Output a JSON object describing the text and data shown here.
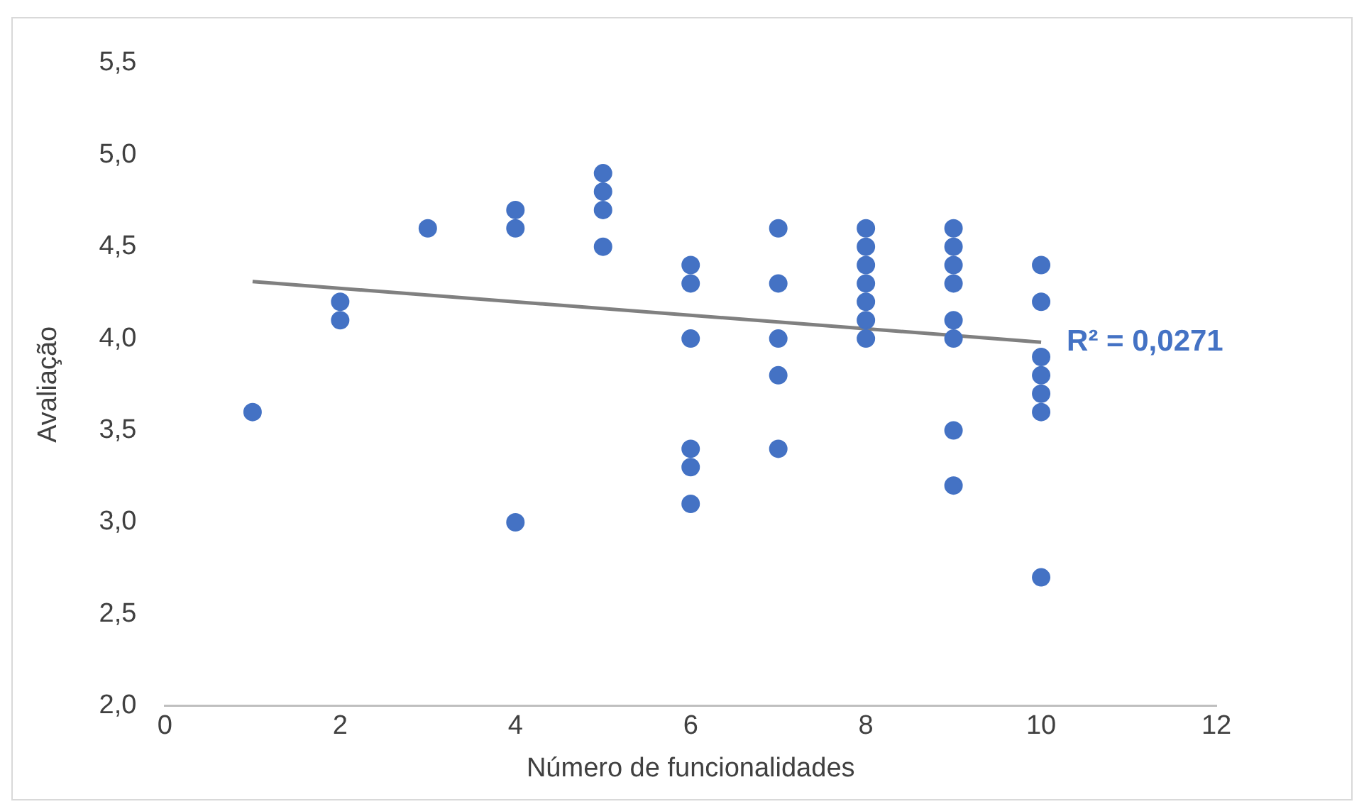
{
  "chart_data": {
    "type": "scatter",
    "xlabel": "Número de funcionalidades",
    "ylabel": "Avaliação",
    "xlim": [
      0,
      12
    ],
    "xticks": [
      0,
      2,
      4,
      6,
      8,
      10,
      12
    ],
    "ylim": [
      2.0,
      5.5
    ],
    "yticks": [
      {
        "value": 2.0,
        "label": "2,0"
      },
      {
        "value": 2.5,
        "label": "2,5"
      },
      {
        "value": 3.0,
        "label": "3,0"
      },
      {
        "value": 3.5,
        "label": "3,5"
      },
      {
        "value": 4.0,
        "label": "4,0"
      },
      {
        "value": 4.5,
        "label": "4,5"
      },
      {
        "value": 5.0,
        "label": "5,0"
      },
      {
        "value": 5.5,
        "label": "5,5"
      }
    ],
    "grid": false,
    "legend": false,
    "marker": "circle",
    "series": [
      {
        "color": "#4472c4",
        "x": [
          1,
          2,
          2,
          3,
          4,
          4,
          4,
          5,
          5,
          5,
          5,
          6,
          6,
          6,
          6,
          6,
          6,
          7,
          7,
          7,
          7,
          7,
          8,
          8,
          8,
          8,
          8,
          8,
          8,
          9,
          9,
          9,
          9,
          9,
          9,
          9,
          9,
          10,
          10,
          10,
          10,
          10,
          10,
          10
        ],
        "values": [
          3.6,
          4.2,
          4.1,
          4.6,
          4.7,
          4.6,
          3.0,
          4.9,
          4.8,
          4.7,
          4.5,
          4.4,
          4.3,
          4.0,
          3.4,
          3.3,
          3.1,
          4.6,
          4.3,
          4.0,
          3.8,
          3.4,
          4.6,
          4.5,
          4.4,
          4.3,
          4.2,
          4.1,
          4.0,
          4.6,
          4.5,
          4.4,
          4.3,
          4.1,
          4.0,
          3.5,
          3.2,
          4.4,
          4.2,
          3.9,
          3.8,
          3.7,
          3.6,
          2.7
        ]
      },
      {
        "type": "line",
        "color": "#808080",
        "marker": "none",
        "line_style": "solid",
        "x": [
          1,
          10
        ],
        "values": [
          4.31,
          3.98
        ]
      }
    ],
    "annotations": [
      {
        "text": "R² = 0,0271",
        "x": 10,
        "y": 3.98
      }
    ]
  }
}
